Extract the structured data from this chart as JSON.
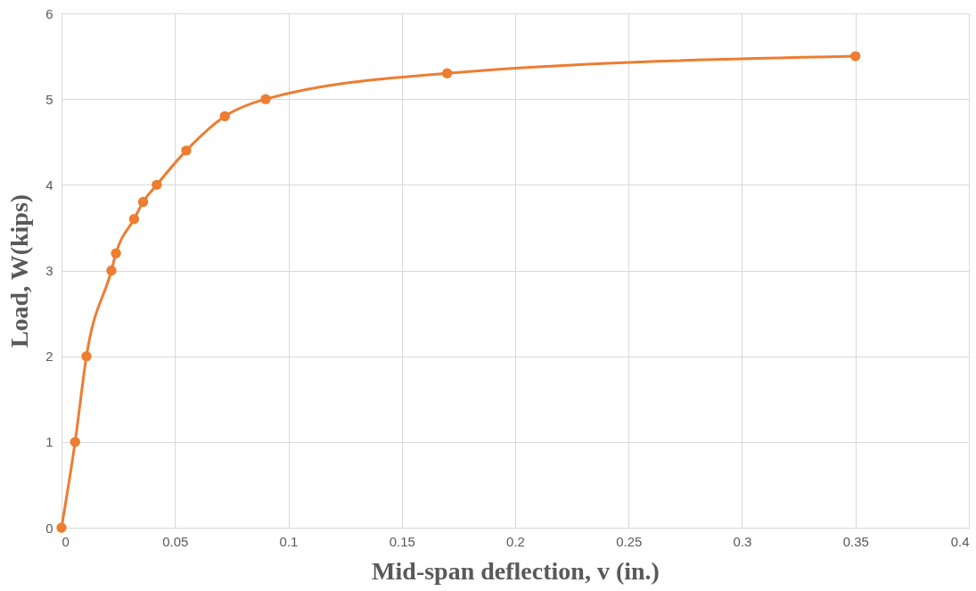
{
  "chart_data": {
    "type": "line",
    "xlabel": "Mid-span deflection, v (in.)",
    "ylabel": "Load, W(kips)",
    "x": [
      0,
      0.006,
      0.011,
      0.022,
      0.024,
      0.032,
      0.036,
      0.042,
      0.055,
      0.072,
      0.09,
      0.17,
      0.35
    ],
    "series": [
      {
        "color": "#ed7d31",
        "values": [
          0,
          1,
          2,
          3,
          3.2,
          3.6,
          3.8,
          4,
          4.4,
          4.8,
          5,
          5.3,
          5.5
        ]
      }
    ],
    "xlim": [
      0,
      0.4
    ],
    "xticks": [
      0,
      0.05,
      0.1,
      0.15,
      0.2,
      0.25,
      0.3,
      0.35,
      0.4
    ],
    "ylim": [
      0,
      6
    ],
    "yticks": [
      0,
      1,
      2,
      3,
      4,
      5,
      6
    ],
    "grid": true,
    "marker": "circle",
    "line_style": "solid",
    "legend": false
  }
}
